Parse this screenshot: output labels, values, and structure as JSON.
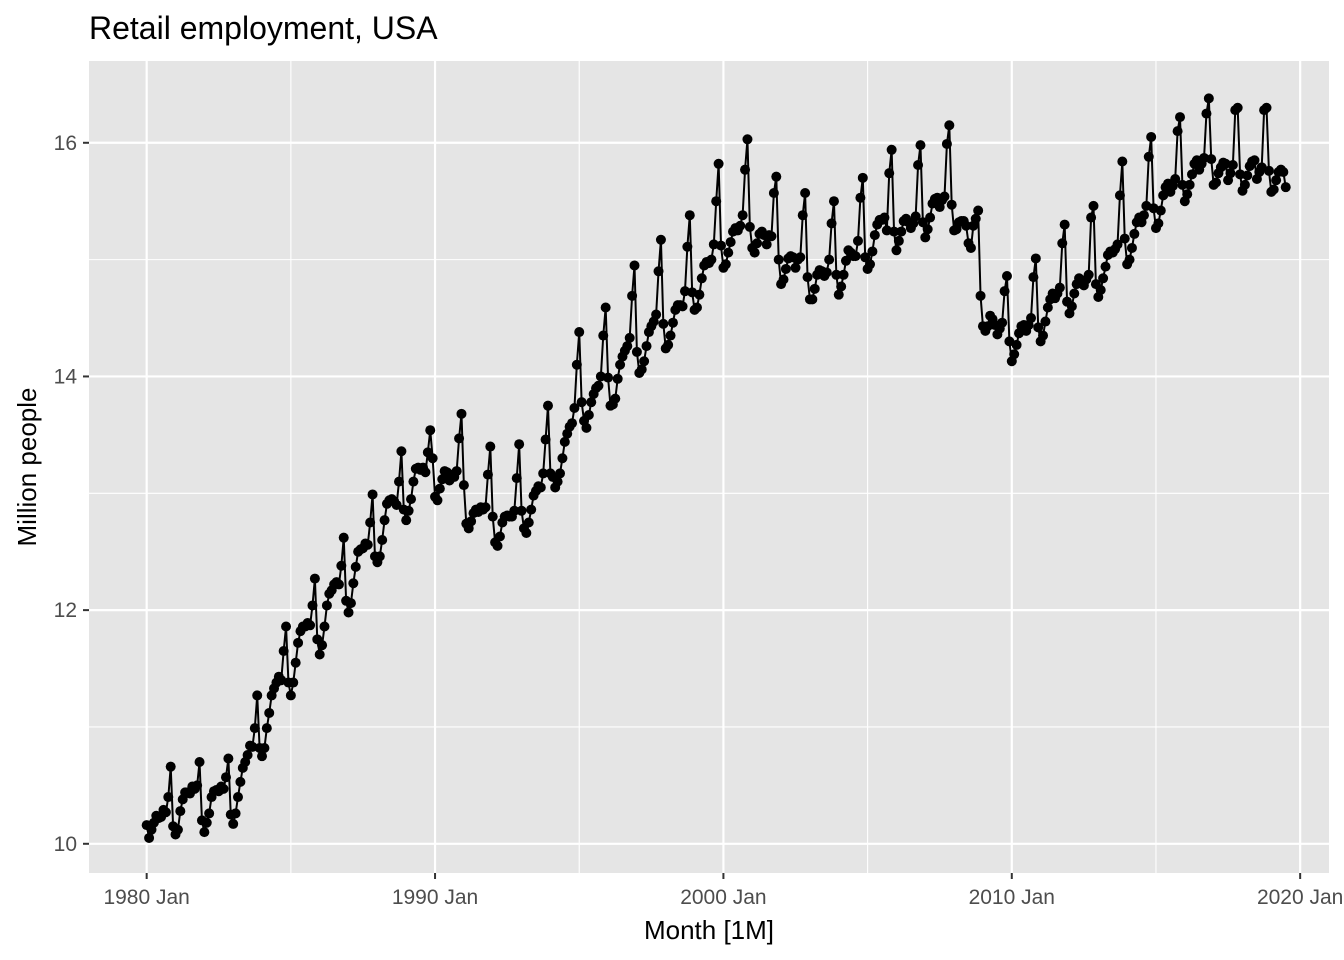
{
  "chart_data": {
    "type": "line",
    "title": "Retail employment, USA",
    "xlabel": "Month [1M]",
    "ylabel": "Million people",
    "x_start": "1980 Jan",
    "x_end": "2019 Sep",
    "xlim": [
      "1978 Jan",
      "2021 Jan"
    ],
    "ylim": [
      9.75,
      16.7
    ],
    "x_ticks": [
      "1980 Jan",
      "1990 Jan",
      "2000 Jan",
      "2010 Jan",
      "2020 Jan"
    ],
    "y_ticks": [
      10,
      12,
      14,
      16
    ],
    "grid": true,
    "legend": "none",
    "markers": true,
    "colors": {
      "panel": "#e5e5e5",
      "grid": "#ffffff",
      "series": "#000000",
      "tick": "#4d4d4d"
    },
    "series": [
      {
        "values": [
          10.16,
          10.05,
          10.12,
          10.18,
          10.24,
          10.22,
          10.23,
          10.29,
          10.27,
          10.4,
          10.66,
          10.15,
          10.08,
          10.12,
          10.28,
          10.38,
          10.44,
          10.44,
          10.43,
          10.49,
          10.47,
          10.5,
          10.7,
          10.2,
          10.1,
          10.18,
          10.26,
          10.4,
          10.45,
          10.46,
          10.45,
          10.49,
          10.47,
          10.57,
          10.73,
          10.25,
          10.17,
          10.26,
          10.4,
          10.53,
          10.65,
          10.7,
          10.76,
          10.84,
          10.83,
          10.99,
          11.27,
          10.82,
          10.75,
          10.82,
          10.99,
          11.12,
          11.27,
          11.33,
          11.38,
          11.43,
          11.4,
          11.65,
          11.86,
          11.38,
          11.27,
          11.38,
          11.55,
          11.72,
          11.82,
          11.86,
          11.86,
          11.89,
          11.87,
          12.04,
          12.27,
          11.75,
          11.62,
          11.7,
          11.86,
          12.04,
          12.14,
          12.17,
          12.22,
          12.24,
          12.22,
          12.38,
          12.62,
          12.08,
          11.98,
          12.06,
          12.23,
          12.37,
          12.5,
          12.52,
          12.53,
          12.57,
          12.56,
          12.75,
          12.99,
          12.46,
          12.41,
          12.46,
          12.6,
          12.77,
          12.91,
          12.94,
          12.95,
          12.93,
          12.9,
          13.1,
          13.36,
          12.86,
          12.77,
          12.85,
          12.95,
          13.1,
          13.21,
          13.22,
          13.2,
          13.22,
          13.18,
          13.35,
          13.54,
          13.3,
          12.97,
          12.94,
          13.04,
          13.12,
          13.19,
          13.18,
          13.11,
          13.16,
          13.14,
          13.19,
          13.47,
          13.68,
          13.07,
          12.74,
          12.7,
          12.76,
          12.83,
          12.86,
          12.84,
          12.88,
          12.86,
          12.88,
          13.16,
          13.4,
          12.8,
          12.58,
          12.55,
          12.63,
          12.75,
          12.8,
          12.81,
          12.8,
          12.8,
          12.85,
          13.13,
          13.42,
          12.85,
          12.7,
          12.66,
          12.75,
          12.86,
          12.98,
          13.02,
          13.06,
          13.05,
          13.17,
          13.46,
          13.75,
          13.17,
          13.14,
          13.05,
          13.1,
          13.17,
          13.3,
          13.44,
          13.51,
          13.57,
          13.6,
          13.73,
          14.1,
          14.38,
          13.78,
          13.62,
          13.56,
          13.67,
          13.78,
          13.85,
          13.9,
          13.92,
          14.0,
          14.35,
          14.59,
          13.99,
          13.75,
          13.76,
          13.81,
          13.98,
          14.1,
          14.17,
          14.22,
          14.26,
          14.33,
          14.69,
          14.95,
          14.21,
          14.03,
          14.06,
          14.13,
          14.26,
          14.38,
          14.43,
          14.47,
          14.53,
          14.9,
          15.17,
          14.45,
          14.24,
          14.27,
          14.35,
          14.46,
          14.57,
          14.61,
          14.61,
          14.6,
          14.73,
          15.11,
          15.38,
          14.72,
          14.57,
          14.59,
          14.7,
          14.84,
          14.95,
          14.98,
          14.97,
          15.0,
          15.13,
          15.5,
          15.82,
          15.12,
          14.93,
          14.96,
          15.06,
          15.15,
          15.24,
          15.27,
          15.25,
          15.29,
          15.38,
          15.77,
          16.03,
          15.28,
          15.1,
          15.06,
          15.14,
          15.22,
          15.24,
          15.21,
          15.13,
          15.21,
          15.2,
          15.57,
          15.71,
          15.0,
          14.79,
          14.83,
          14.92,
          15.01,
          15.03,
          15.02,
          14.93,
          15.0,
          15.02,
          15.38,
          15.57,
          14.85,
          14.66,
          14.66,
          14.75,
          14.87,
          14.91,
          14.9,
          14.86,
          14.89,
          15.0,
          15.31,
          15.5,
          14.87,
          14.7,
          14.77,
          14.87,
          14.99,
          15.08,
          15.06,
          15.03,
          15.03,
          15.16,
          15.53,
          15.7,
          15.02,
          14.92,
          14.96,
          15.07,
          15.21,
          15.3,
          15.34,
          15.34,
          15.36,
          15.25,
          15.74,
          15.94,
          15.24,
          15.08,
          15.16,
          15.24,
          15.33,
          15.35,
          15.32,
          15.27,
          15.31,
          15.37,
          15.81,
          15.98,
          15.32,
          15.19,
          15.26,
          15.36,
          15.48,
          15.52,
          15.53,
          15.45,
          15.51,
          15.54,
          15.99,
          16.15,
          15.47,
          15.25,
          15.26,
          15.32,
          15.33,
          15.33,
          15.29,
          15.14,
          15.1,
          15.29,
          15.35,
          15.42,
          14.69,
          14.43,
          14.39,
          14.43,
          14.52,
          14.49,
          14.44,
          14.36,
          14.41,
          14.46,
          14.73,
          14.86,
          14.3,
          14.13,
          14.19,
          14.27,
          14.37,
          14.43,
          14.44,
          14.39,
          14.44,
          14.5,
          14.85,
          15.01,
          14.42,
          14.3,
          14.35,
          14.47,
          14.59,
          14.66,
          14.71,
          14.67,
          14.71,
          14.76,
          15.14,
          15.3,
          14.64,
          14.54,
          14.6,
          14.71,
          14.79,
          14.84,
          14.82,
          14.78,
          14.83,
          14.87,
          15.36,
          15.46,
          14.79,
          14.68,
          14.74,
          14.84,
          14.94,
          15.04,
          15.07,
          15.06,
          15.09,
          15.13,
          15.55,
          15.84,
          15.18,
          14.96,
          15.0,
          15.1,
          15.22,
          15.32,
          15.36,
          15.32,
          15.38,
          15.46,
          15.88,
          16.05,
          15.44,
          15.27,
          15.31,
          15.42,
          15.55,
          15.62,
          15.65,
          15.58,
          15.63,
          15.69,
          16.1,
          16.22,
          15.64,
          15.5,
          15.56,
          15.64,
          15.73,
          15.82,
          15.85,
          15.77,
          15.82,
          15.87,
          16.25,
          16.38,
          15.86,
          15.64,
          15.66,
          15.74,
          15.79,
          15.83,
          15.82,
          15.68,
          15.74,
          15.81,
          16.28,
          16.3,
          15.73,
          15.59,
          15.64,
          15.72,
          15.8,
          15.84,
          15.85,
          15.69,
          15.75,
          15.79,
          16.28,
          16.3,
          15.76,
          15.58,
          15.6,
          15.68,
          15.75,
          15.77,
          15.75,
          15.62
        ]
      }
    ]
  }
}
